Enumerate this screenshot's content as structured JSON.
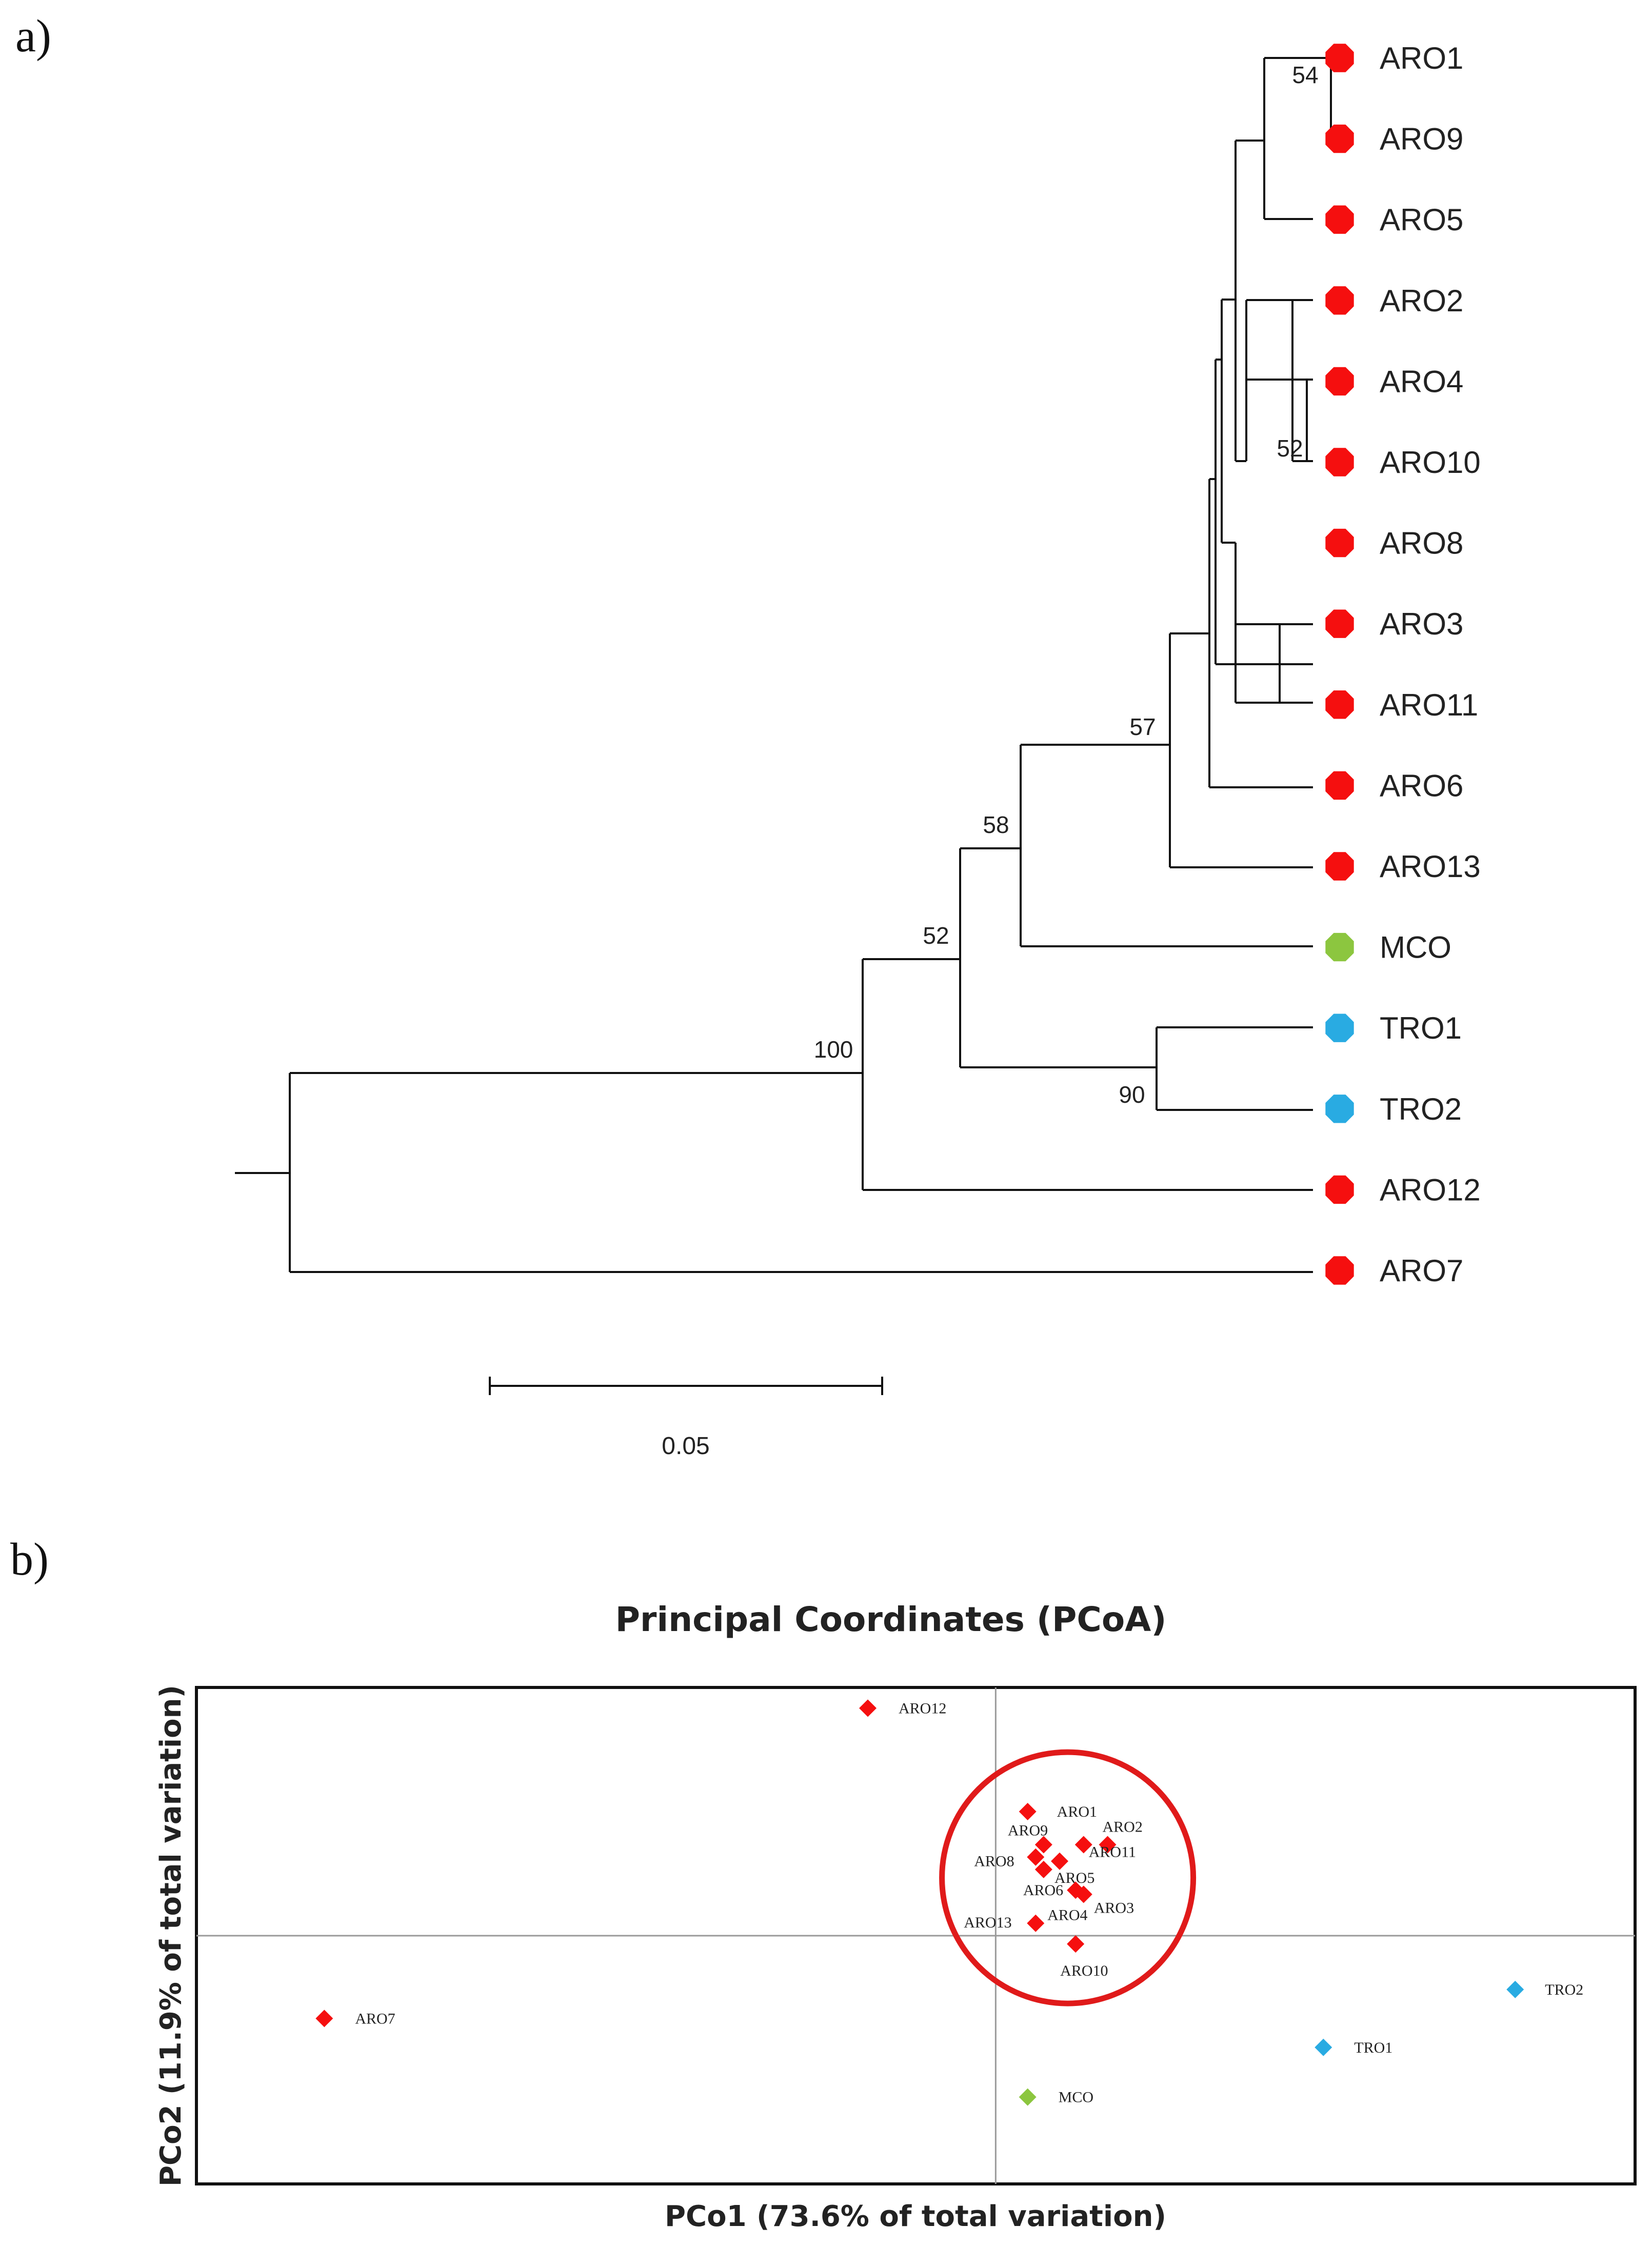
{
  "panel_a_label": "a)",
  "panel_b_label": "b)",
  "colors": {
    "red": "#f50f0f",
    "green": "#8cc63f",
    "blue": "#29abe2",
    "circle": "#e01a1a",
    "branch": "#111111",
    "axis": "#9a9a9a"
  },
  "chart_data": [
    {
      "type": "tree",
      "title": "",
      "scale_bar": {
        "value": 0.05,
        "label": "0.05"
      },
      "leaves": [
        {
          "name": "ARO1",
          "color": "red"
        },
        {
          "name": "ARO9",
          "color": "red"
        },
        {
          "name": "ARO5",
          "color": "red"
        },
        {
          "name": "ARO2",
          "color": "red"
        },
        {
          "name": "ARO4",
          "color": "red"
        },
        {
          "name": "ARO10",
          "color": "red"
        },
        {
          "name": "ARO8",
          "color": "red"
        },
        {
          "name": "ARO3",
          "color": "red"
        },
        {
          "name": "ARO11",
          "color": "red"
        },
        {
          "name": "ARO6",
          "color": "red"
        },
        {
          "name": "ARO13",
          "color": "red"
        },
        {
          "name": "MCO",
          "color": "green"
        },
        {
          "name": "TRO1",
          "color": "blue"
        },
        {
          "name": "TRO2",
          "color": "blue"
        },
        {
          "name": "ARO12",
          "color": "red"
        },
        {
          "name": "ARO7",
          "color": "red"
        }
      ],
      "bootstrap": [
        {
          "clade": "ARO1+ARO9",
          "value": "54"
        },
        {
          "clade": "ARO4+ARO10",
          "value": "52"
        },
        {
          "clade": "ARO cluster",
          "value": "57"
        },
        {
          "clade": "ARO cluster+MCO",
          "value": "58"
        },
        {
          "clade": "with TRO",
          "value": "52"
        },
        {
          "clade": "TRO1+TRO2",
          "value": "90"
        },
        {
          "clade": "root inner",
          "value": "100"
        }
      ]
    },
    {
      "type": "scatter",
      "title": "Principal Coordinates (PCoA)",
      "xlabel": "PCo1 (73.6% of total variation)",
      "ylabel": "PCo2 (11.9% of total variation)",
      "xlim": [
        -1.0,
        0.8
      ],
      "ylim": [
        -0.6,
        0.6
      ],
      "grid": false,
      "points": [
        {
          "label": "ARO12",
          "x": -0.16,
          "y": 0.55,
          "color": "red"
        },
        {
          "label": "ARO1",
          "x": 0.04,
          "y": 0.3,
          "color": "red"
        },
        {
          "label": "ARO9",
          "x": 0.06,
          "y": 0.22,
          "color": "red"
        },
        {
          "label": "ARO2",
          "x": 0.14,
          "y": 0.22,
          "color": "red"
        },
        {
          "label": "ARO8",
          "x": 0.05,
          "y": 0.19,
          "color": "red"
        },
        {
          "label": "ARO5",
          "x": 0.08,
          "y": 0.18,
          "color": "red"
        },
        {
          "label": "ARO6",
          "x": 0.06,
          "y": 0.16,
          "color": "red"
        },
        {
          "label": "ARO11",
          "x": 0.11,
          "y": 0.22,
          "color": "red"
        },
        {
          "label": "ARO3",
          "x": 0.11,
          "y": 0.1,
          "color": "red"
        },
        {
          "label": "ARO4",
          "x": 0.1,
          "y": 0.11,
          "color": "red"
        },
        {
          "label": "ARO13",
          "x": 0.05,
          "y": 0.03,
          "color": "red"
        },
        {
          "label": "ARO10",
          "x": 0.1,
          "y": -0.02,
          "color": "red"
        },
        {
          "label": "ARO7",
          "x": -0.84,
          "y": -0.2,
          "color": "red"
        },
        {
          "label": "MCO",
          "x": 0.04,
          "y": -0.39,
          "color": "green"
        },
        {
          "label": "TRO1",
          "x": 0.41,
          "y": -0.27,
          "color": "blue"
        },
        {
          "label": "TRO2",
          "x": 0.65,
          "y": -0.13,
          "color": "blue"
        }
      ]
    }
  ]
}
